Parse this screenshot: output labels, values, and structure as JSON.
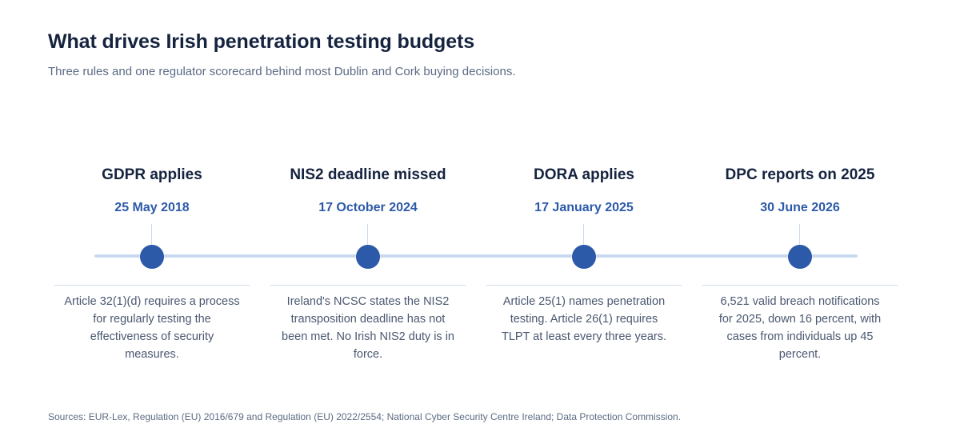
{
  "header": {
    "title": "What drives Irish penetration testing budgets",
    "subtitle": "Three rules and one regulator scorecard behind most Dublin and Cork buying decisions."
  },
  "timeline": {
    "events": [
      {
        "label": "GDPR applies",
        "date": "25 May 2018",
        "description": "Article 32(1)(d) requires a process for regularly testing the effectiveness of security measures."
      },
      {
        "label": "NIS2 deadline missed",
        "date": "17 October 2024",
        "description": "Ireland's NCSC states the NIS2 transposition deadline has not been met. No Irish NIS2 duty is in force."
      },
      {
        "label": "DORA applies",
        "date": "17 January 2025",
        "description": "Article 25(1) names penetration testing. Article 26(1) requires TLPT at least every three years."
      },
      {
        "label": "DPC reports on 2025",
        "date": "30 June 2026",
        "description": "6,521 valid breach notifications for 2025, down 16 percent, with cases from individuals up 45 percent."
      }
    ]
  },
  "footer": {
    "sources": "Sources: EUR-Lex, Regulation (EU) 2016/679 and Regulation (EU) 2022/2554; National Cyber Security Centre Ireland; Data Protection Commission."
  },
  "colors": {
    "title": "#15233f",
    "accent": "#2c5aa8",
    "track": "#c9d9ef",
    "muted": "#5b6b84"
  }
}
